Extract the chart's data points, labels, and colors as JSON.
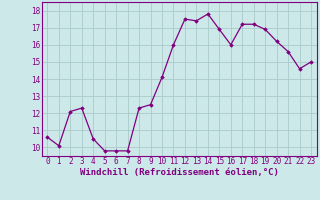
{
  "x": [
    0,
    1,
    2,
    3,
    4,
    5,
    6,
    7,
    8,
    9,
    10,
    11,
    12,
    13,
    14,
    15,
    16,
    17,
    18,
    19,
    20,
    21,
    22,
    23
  ],
  "y": [
    10.6,
    10.1,
    12.1,
    12.3,
    10.5,
    9.8,
    9.8,
    9.8,
    12.3,
    12.5,
    14.1,
    16.0,
    17.5,
    17.4,
    17.8,
    16.9,
    16.0,
    17.2,
    17.2,
    16.9,
    16.2,
    15.6,
    14.6,
    15.0
  ],
  "line_color": "#800080",
  "marker": "D",
  "marker_size": 1.8,
  "linewidth": 0.9,
  "xlabel": "Windchill (Refroidissement éolien,°C)",
  "xlabel_fontsize": 6.5,
  "ylim": [
    9.5,
    18.5
  ],
  "xlim": [
    -0.5,
    23.5
  ],
  "yticks": [
    10,
    11,
    12,
    13,
    14,
    15,
    16,
    17,
    18
  ],
  "xticks": [
    0,
    1,
    2,
    3,
    4,
    5,
    6,
    7,
    8,
    9,
    10,
    11,
    12,
    13,
    14,
    15,
    16,
    17,
    18,
    19,
    20,
    21,
    22,
    23
  ],
  "grid_color": "#aacaca",
  "bg_color": "#cce8e8",
  "tick_color": "#800080",
  "tick_fontsize": 5.5,
  "spine_color": "#800080"
}
